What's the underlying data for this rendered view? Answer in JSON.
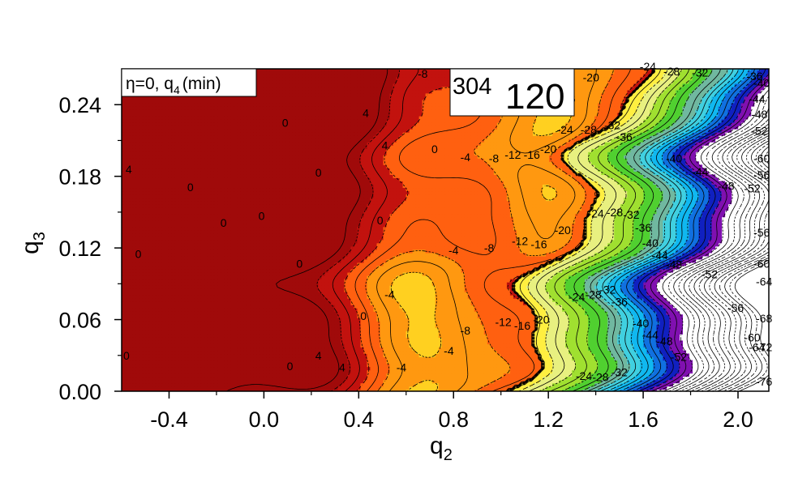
{
  "chart_data": {
    "type": "heatmap",
    "title": "",
    "xlabel": "q",
    "xlabel_sub": "2",
    "ylabel": "q",
    "ylabel_sub": "3",
    "xlim": [
      -0.6,
      2.13
    ],
    "ylim": [
      0.0,
      0.27
    ],
    "x_ticks": [
      {
        "value": -0.4,
        "label": "-0.4"
      },
      {
        "value": 0.0,
        "label": "0.0"
      },
      {
        "value": 0.4,
        "label": "0.4"
      },
      {
        "value": 0.8,
        "label": "0.8"
      },
      {
        "value": 1.2,
        "label": "1.2"
      },
      {
        "value": 1.6,
        "label": "1.6"
      },
      {
        "value": 2.0,
        "label": "2.0"
      }
    ],
    "y_ticks": [
      {
        "value": 0.0,
        "label": "0.00"
      },
      {
        "value": 0.06,
        "label": "0.06"
      },
      {
        "value": 0.12,
        "label": "0.12"
      },
      {
        "value": 0.18,
        "label": "0.18"
      },
      {
        "value": 0.24,
        "label": "0.24"
      }
    ],
    "legend": {
      "text": "η=0, q",
      "sub": "4",
      "suffix": "(min)"
    },
    "nucleus": {
      "mass": "304",
      "charge": "120"
    },
    "contour_labels": [
      {
        "x": -0.57,
        "y": 0.186,
        "text": "4"
      },
      {
        "x": -0.53,
        "y": 0.115,
        "text": "0"
      },
      {
        "x": -0.58,
        "y": 0.03,
        "text": "0"
      },
      {
        "x": -0.31,
        "y": 0.171,
        "text": "0"
      },
      {
        "x": -0.17,
        "y": 0.141,
        "text": "0"
      },
      {
        "x": -0.01,
        "y": 0.147,
        "text": "0"
      },
      {
        "x": 0.09,
        "y": 0.225,
        "text": "0"
      },
      {
        "x": 0.15,
        "y": 0.107,
        "text": "0"
      },
      {
        "x": 0.11,
        "y": 0.021,
        "text": "0"
      },
      {
        "x": 0.23,
        "y": 0.03,
        "text": "4"
      },
      {
        "x": 0.33,
        "y": 0.02,
        "text": "4"
      },
      {
        "x": 0.23,
        "y": 0.183,
        "text": "0"
      },
      {
        "x": 0.43,
        "y": 0.233,
        "text": "4"
      },
      {
        "x": 0.51,
        "y": 0.206,
        "text": "4"
      },
      {
        "x": 0.72,
        "y": 0.203,
        "text": "0"
      },
      {
        "x": 0.49,
        "y": 0.143,
        "text": "0"
      },
      {
        "x": 0.42,
        "y": 0.063,
        "text": "0"
      },
      {
        "x": 0.53,
        "y": 0.081,
        "text": "-4"
      },
      {
        "x": 0.58,
        "y": 0.02,
        "text": "-4"
      },
      {
        "x": 0.67,
        "y": 0.266,
        "text": "-8"
      },
      {
        "x": 0.85,
        "y": 0.196,
        "text": "-4"
      },
      {
        "x": 0.97,
        "y": 0.195,
        "text": "-8"
      },
      {
        "x": 1.05,
        "y": 0.198,
        "text": "-12"
      },
      {
        "x": 1.13,
        "y": 0.198,
        "text": "-16"
      },
      {
        "x": 1.2,
        "y": 0.203,
        "text": "-20"
      },
      {
        "x": 0.8,
        "y": 0.118,
        "text": "-4"
      },
      {
        "x": 0.95,
        "y": 0.12,
        "text": "-8"
      },
      {
        "x": 1.08,
        "y": 0.126,
        "text": "-12"
      },
      {
        "x": 1.16,
        "y": 0.123,
        "text": "-16"
      },
      {
        "x": 1.26,
        "y": 0.135,
        "text": "-20"
      },
      {
        "x": 0.78,
        "y": 0.034,
        "text": "-4"
      },
      {
        "x": 0.85,
        "y": 0.051,
        "text": "-8"
      },
      {
        "x": 1.01,
        "y": 0.058,
        "text": "-12"
      },
      {
        "x": 1.09,
        "y": 0.055,
        "text": "-16"
      },
      {
        "x": 1.17,
        "y": 0.06,
        "text": "-20"
      },
      {
        "x": 1.28,
        "y": 0.245,
        "text": "-16"
      },
      {
        "x": 1.38,
        "y": 0.263,
        "text": "-20"
      },
      {
        "x": 1.27,
        "y": 0.219,
        "text": "-24"
      },
      {
        "x": 1.37,
        "y": 0.219,
        "text": "-28"
      },
      {
        "x": 1.47,
        "y": 0.223,
        "text": "-32"
      },
      {
        "x": 1.52,
        "y": 0.213,
        "text": "-36"
      },
      {
        "x": 1.62,
        "y": 0.272,
        "text": "-24"
      },
      {
        "x": 1.72,
        "y": 0.268,
        "text": "-28"
      },
      {
        "x": 1.84,
        "y": 0.267,
        "text": "-32"
      },
      {
        "x": 1.4,
        "y": 0.149,
        "text": "-24"
      },
      {
        "x": 1.48,
        "y": 0.15,
        "text": "-28"
      },
      {
        "x": 1.55,
        "y": 0.148,
        "text": "-32"
      },
      {
        "x": 1.6,
        "y": 0.137,
        "text": "-36"
      },
      {
        "x": 1.63,
        "y": 0.124,
        "text": "-40"
      },
      {
        "x": 1.67,
        "y": 0.114,
        "text": "-44"
      },
      {
        "x": 1.73,
        "y": 0.106,
        "text": "-48"
      },
      {
        "x": 1.32,
        "y": 0.079,
        "text": "-24"
      },
      {
        "x": 1.39,
        "y": 0.081,
        "text": "-28"
      },
      {
        "x": 1.45,
        "y": 0.085,
        "text": "-32"
      },
      {
        "x": 1.5,
        "y": 0.075,
        "text": "-36"
      },
      {
        "x": 1.59,
        "y": 0.057,
        "text": "-40"
      },
      {
        "x": 1.63,
        "y": 0.047,
        "text": "-44"
      },
      {
        "x": 1.69,
        "y": 0.042,
        "text": "-48"
      },
      {
        "x": 1.75,
        "y": 0.029,
        "text": "-52"
      },
      {
        "x": 1.73,
        "y": 0.195,
        "text": "-40"
      },
      {
        "x": 1.84,
        "y": 0.184,
        "text": "-44"
      },
      {
        "x": 1.95,
        "y": 0.172,
        "text": "-48"
      },
      {
        "x": 2.06,
        "y": 0.17,
        "text": "-52"
      },
      {
        "x": 2.1,
        "y": 0.181,
        "text": "-56"
      },
      {
        "x": 2.1,
        "y": 0.195,
        "text": "-60"
      },
      {
        "x": 1.88,
        "y": 0.098,
        "text": "-52"
      },
      {
        "x": 1.99,
        "y": 0.07,
        "text": "-56"
      },
      {
        "x": 2.06,
        "y": 0.045,
        "text": "-60"
      },
      {
        "x": 2.1,
        "y": 0.107,
        "text": "-60"
      },
      {
        "x": 2.1,
        "y": 0.133,
        "text": "-56"
      },
      {
        "x": 2.11,
        "y": 0.092,
        "text": "-64"
      },
      {
        "x": 2.08,
        "y": 0.037,
        "text": "-64"
      },
      {
        "x": 2.11,
        "y": 0.061,
        "text": "-68"
      },
      {
        "x": 2.11,
        "y": 0.037,
        "text": "-72"
      },
      {
        "x": 2.11,
        "y": 0.008,
        "text": "-76"
      },
      {
        "x": 2.08,
        "y": 0.245,
        "text": "-44"
      },
      {
        "x": 2.09,
        "y": 0.232,
        "text": "-48"
      },
      {
        "x": 2.09,
        "y": 0.218,
        "text": "-52"
      },
      {
        "x": 2.1,
        "y": 0.258,
        "text": "-40"
      },
      {
        "x": 2.07,
        "y": 0.264,
        "text": "-36"
      },
      {
        "x": 1.35,
        "y": 0.013,
        "text": "-24"
      },
      {
        "x": 1.42,
        "y": 0.012,
        "text": "-28"
      },
      {
        "x": 1.5,
        "y": 0.016,
        "text": "-32"
      }
    ]
  }
}
